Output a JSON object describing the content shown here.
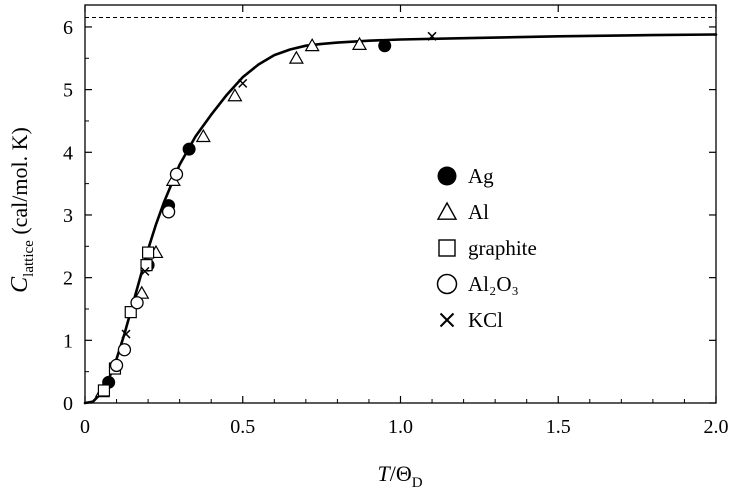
{
  "chart_data": {
    "type": "scatter",
    "title": "",
    "xlim": [
      0,
      2.0
    ],
    "ylim": [
      0,
      6.35
    ],
    "x_ticks": [
      "0",
      "0.5",
      "1.0",
      "1.5",
      "2.0"
    ],
    "x_tick_values": [
      0,
      0.5,
      1.0,
      1.5,
      2.0
    ],
    "y_ticks": [
      "0",
      "1",
      "2",
      "3",
      "4",
      "5",
      "6"
    ],
    "y_tick_values": [
      0,
      1,
      2,
      3,
      4,
      5,
      6
    ],
    "xlabel": {
      "var": "T",
      "sep": "/",
      "theta": "Θ",
      "sub": "D"
    },
    "ylabel": {
      "var": "C",
      "sub": "lattice",
      "unit": " (cal/mol. K)"
    },
    "asymptote": {
      "value": 6.15,
      "style": "dashed"
    },
    "curve": {
      "x": [
        0,
        0.025,
        0.05,
        0.075,
        0.1,
        0.125,
        0.15,
        0.175,
        0.2,
        0.225,
        0.25,
        0.3,
        0.35,
        0.4,
        0.45,
        0.5,
        0.55,
        0.6,
        0.65,
        0.7,
        0.75,
        0.8,
        0.9,
        1.0,
        1.2,
        1.5,
        1.8,
        2.0
      ],
      "y": [
        0,
        0.02,
        0.15,
        0.38,
        0.7,
        1.1,
        1.55,
        2.0,
        2.45,
        2.85,
        3.2,
        3.8,
        4.25,
        4.6,
        4.92,
        5.2,
        5.4,
        5.55,
        5.64,
        5.7,
        5.73,
        5.75,
        5.78,
        5.8,
        5.82,
        5.85,
        5.87,
        5.88
      ]
    },
    "series": [
      {
        "name": "Ag",
        "marker": "filled-circle",
        "x": [
          0.075,
          0.2,
          0.265,
          0.33,
          0.95
        ],
        "y": [
          0.33,
          2.2,
          3.15,
          4.05,
          5.7
        ]
      },
      {
        "name": "Al",
        "marker": "open-triangle",
        "x": [
          0.055,
          0.18,
          0.225,
          0.28,
          0.375,
          0.475,
          0.67,
          0.72,
          0.87
        ],
        "y": [
          0.18,
          1.75,
          2.4,
          3.55,
          4.25,
          4.9,
          5.5,
          5.7,
          5.72
        ]
      },
      {
        "name": "graphite",
        "marker": "open-square",
        "x": [
          0.06,
          0.095,
          0.145,
          0.195,
          0.2
        ],
        "y": [
          0.2,
          0.55,
          1.45,
          2.2,
          2.4
        ]
      },
      {
        "name": "Al₂O₃",
        "marker": "open-circle",
        "x": [
          0.1,
          0.125,
          0.165,
          0.265,
          0.29
        ],
        "y": [
          0.6,
          0.85,
          1.6,
          3.05,
          3.65
        ]
      },
      {
        "name": "KCl",
        "marker": "cross",
        "x": [
          0.13,
          0.19,
          0.5,
          1.1
        ],
        "y": [
          1.1,
          2.1,
          5.1,
          5.85
        ]
      }
    ],
    "legend": {
      "position": "center-right"
    }
  }
}
